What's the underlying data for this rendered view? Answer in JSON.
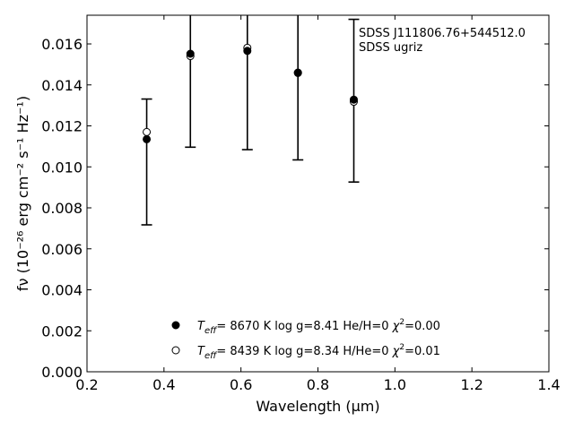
{
  "chart_data": {
    "type": "scatter",
    "title": "",
    "annotation": [
      "SDSS J111806.76+544512.0",
      "SDSS ugriz"
    ],
    "xlabel": "Wavelength (μm)",
    "ylabel": "fν (10⁻²⁶ erg cm⁻² s⁻¹ Hz⁻¹)",
    "xlim": [
      0.2,
      1.4
    ],
    "ylim": [
      0.0,
      0.0174
    ],
    "xticks": [
      "0.2",
      "0.4",
      "0.6",
      "0.8",
      "1.0",
      "1.2",
      "1.4"
    ],
    "yticks": [
      "0.000",
      "0.002",
      "0.004",
      "0.006",
      "0.008",
      "0.010",
      "0.012",
      "0.014",
      "0.016"
    ],
    "grid": false,
    "legend_position": "bottom-center",
    "errorbars": [
      {
        "x": 0.3551,
        "low": 0.00717,
        "high": 0.01331
      },
      {
        "x": 0.4686,
        "low": 0.01096,
        "high": 0.0204
      },
      {
        "x": 0.6166,
        "low": 0.01084,
        "high": 0.0206
      },
      {
        "x": 0.748,
        "low": 0.01034,
        "high": 0.019
      },
      {
        "x": 0.8932,
        "low": 0.00926,
        "high": 0.0172
      }
    ],
    "series": [
      {
        "marker": "filled",
        "label": "He/H=0",
        "teff": "8670 K",
        "logg": "log g=8.41",
        "chi2": "=0.00",
        "points": [
          {
            "x": 0.3551,
            "y": 0.01135
          },
          {
            "x": 0.4686,
            "y": 0.01552
          },
          {
            "x": 0.6166,
            "y": 0.01566
          },
          {
            "x": 0.748,
            "y": 0.0146
          },
          {
            "x": 0.8932,
            "y": 0.01328
          }
        ]
      },
      {
        "marker": "open",
        "label": "H/He=0",
        "teff": "8439 K",
        "logg": "log g=8.34",
        "chi2": "=0.01",
        "points": [
          {
            "x": 0.3551,
            "y": 0.0117
          },
          {
            "x": 0.4686,
            "y": 0.01541
          },
          {
            "x": 0.6166,
            "y": 0.01581
          },
          {
            "x": 0.748,
            "y": 0.01458
          },
          {
            "x": 0.8932,
            "y": 0.01318
          }
        ]
      }
    ]
  }
}
